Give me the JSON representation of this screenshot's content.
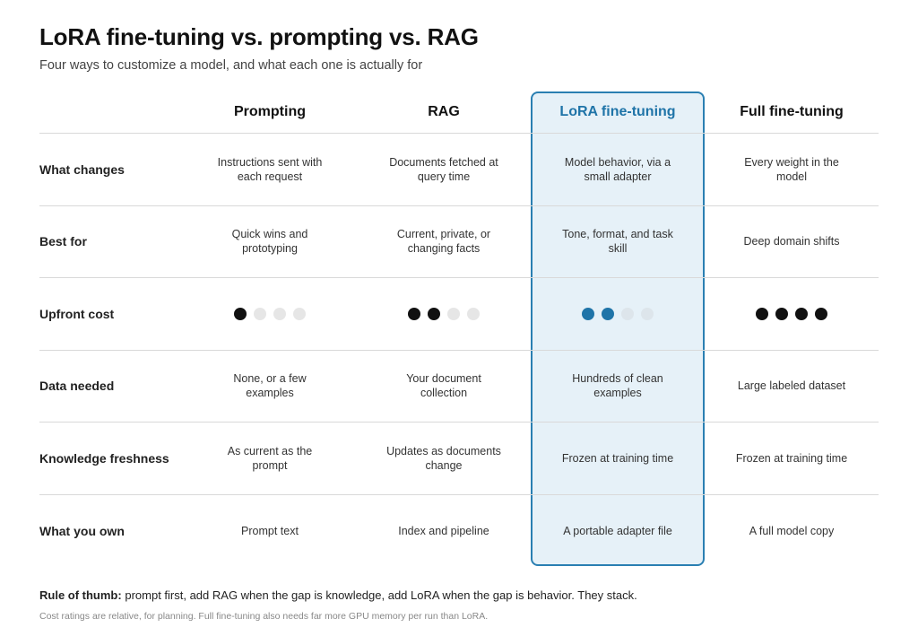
{
  "title": "LoRA fine-tuning vs. prompting vs. RAG",
  "subtitle": "Four ways to customize a model, and what each one is actually for",
  "columns": [
    "Prompting",
    "RAG",
    "LoRA fine-tuning",
    "Full fine-tuning"
  ],
  "highlight_color": "#1f74a8",
  "rows": [
    {
      "label": "What changes",
      "cells": [
        "Instructions sent with each request",
        "Documents fetched at query time",
        "Model behavior, via a small adapter",
        "Every weight in the model"
      ]
    },
    {
      "label": "Best for",
      "cells": [
        "Quick wins and prototyping",
        "Current, private, or changing facts",
        "Tone, format, and task skill",
        "Deep domain shifts"
      ]
    },
    {
      "label": "Upfront cost",
      "cost_ratings": [
        1,
        2,
        2,
        4
      ],
      "cost_max": 4
    },
    {
      "label": "Data needed",
      "cells": [
        "None, or a few examples",
        "Your document collection",
        "Hundreds of clean examples",
        "Large labeled dataset"
      ]
    },
    {
      "label": "Knowledge freshness",
      "cells": [
        "As current as the prompt",
        "Updates as documents change",
        "Frozen at training time",
        "Frozen at training time"
      ]
    },
    {
      "label": "What you own",
      "cells": [
        "Prompt text",
        "Index and pipeline",
        "A portable adapter file",
        "A full model copy"
      ]
    }
  ],
  "rule_of_thumb": {
    "label": "Rule of thumb:",
    "text": "prompt first, add RAG when the gap is knowledge, add LoRA when the gap is behavior. They stack."
  },
  "footnote": "Cost ratings are relative, for planning. Full fine-tuning also needs far more GPU memory per run than LoRA."
}
